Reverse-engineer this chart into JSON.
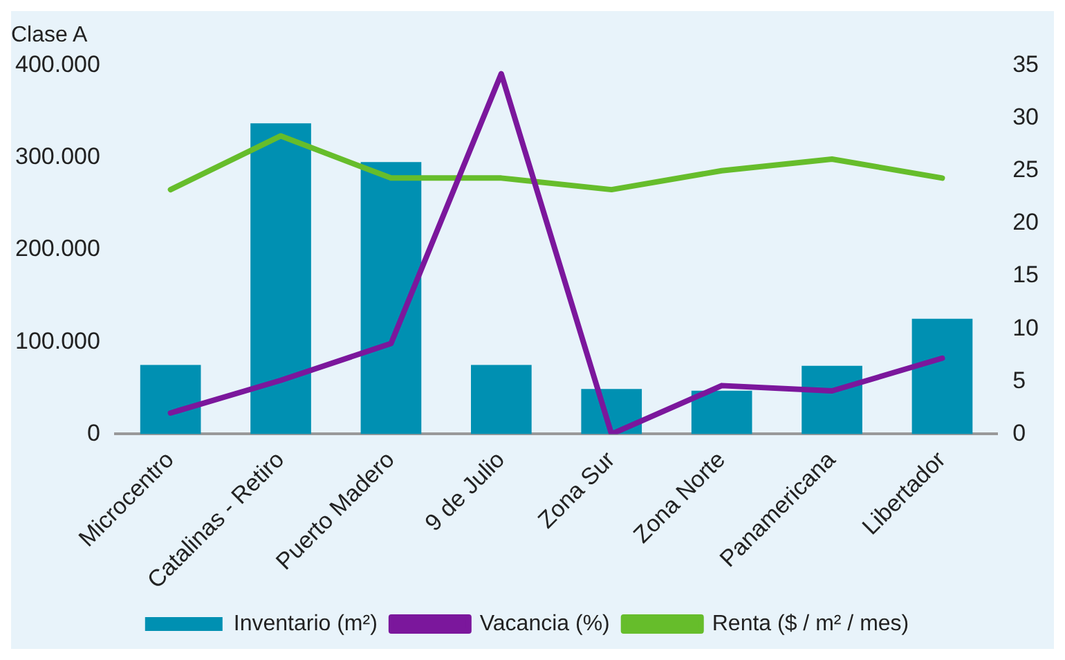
{
  "chart_data": {
    "type": "bar",
    "title": "Clase A",
    "categories": [
      "Microcentro",
      "Catalinas - Retiro",
      "Puerto Madero",
      "9 de Julio",
      "Zona Sur",
      "Zona Norte",
      "Panamericana",
      "Libertador"
    ],
    "series": [
      {
        "name": "Inventario (m²)",
        "color": "#0090b2",
        "values": [
          75000,
          337000,
          295000,
          75000,
          49000,
          47000,
          74000,
          125000
        ]
      },
      {
        "name": "Vacancia (%)",
        "type": "line",
        "axis": "y2",
        "color": "#7b179c",
        "values": [
          2.0,
          5.1,
          8.6,
          34.2,
          0,
          4.6,
          4.1,
          7.2
        ]
      },
      {
        "name": "Renta ($ / m² / mes)",
        "type": "line",
        "axis": "y2",
        "color": "#66bd2b",
        "values": [
          23.2,
          28.3,
          24.3,
          24.3,
          23.2,
          25.0,
          26.1,
          24.3
        ]
      }
    ],
    "ylim": [
      0,
      400000
    ],
    "yticks": [
      {
        "value": 0,
        "label": "0"
      },
      {
        "value": 100000,
        "label": "100.000"
      },
      {
        "value": 200000,
        "label": "200.000"
      },
      {
        "value": 300000,
        "label": "300.000"
      },
      {
        "value": 400000,
        "label": "400.000"
      }
    ],
    "y2lim": [
      0,
      35
    ],
    "y2ticks": [
      0,
      5,
      10,
      15,
      20,
      25,
      30,
      35
    ],
    "grid": false,
    "legend": "bottom",
    "marker": "none",
    "line_style": "solid"
  }
}
